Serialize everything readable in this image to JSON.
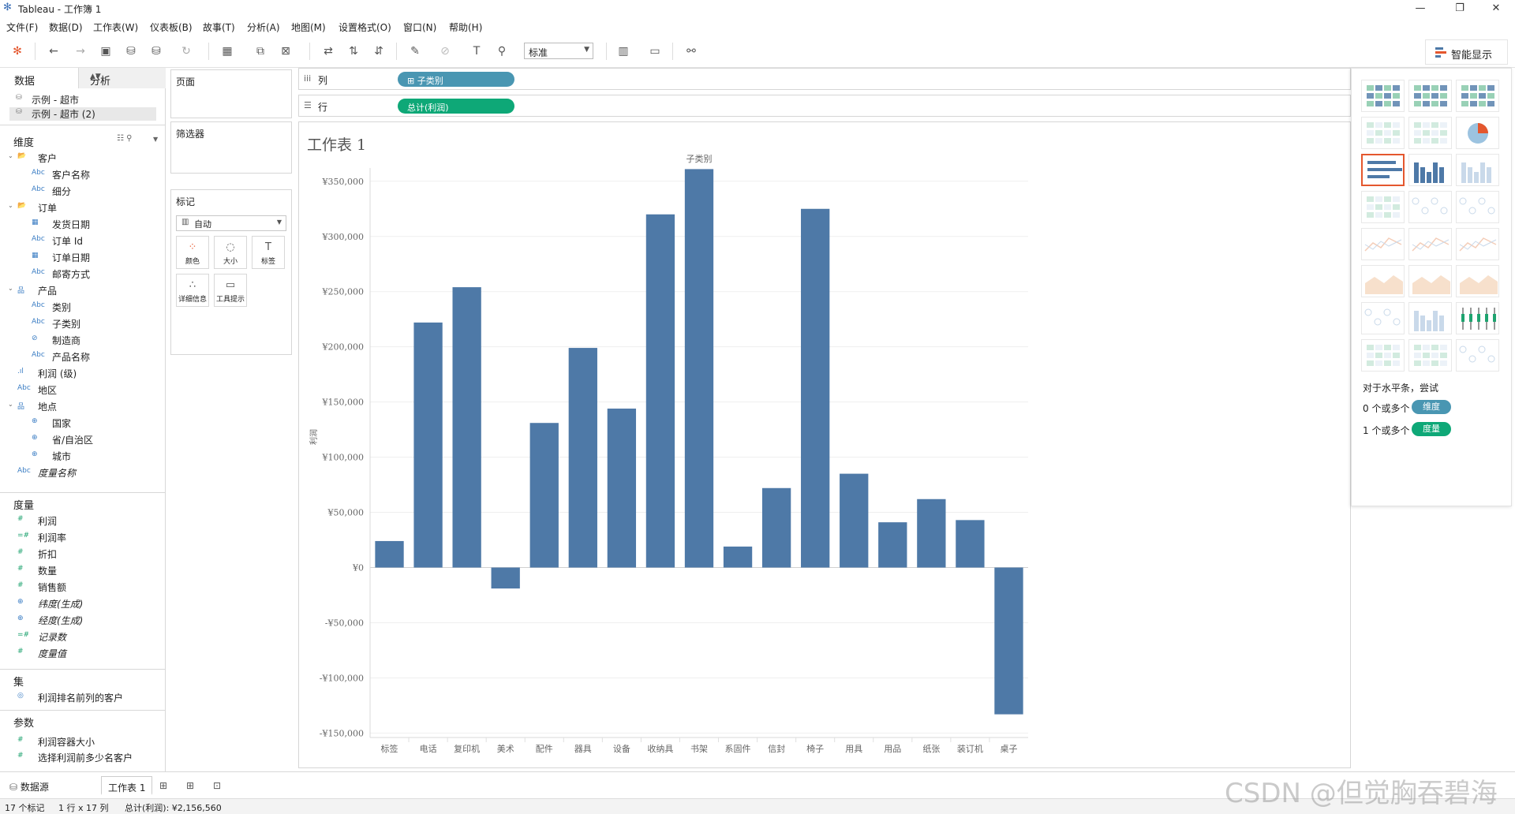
{
  "window": {
    "title": "Tableau - 工作簿 1"
  },
  "menu": [
    "文件(F)",
    "数据(D)",
    "工作表(W)",
    "仪表板(B)",
    "故事(T)",
    "分析(A)",
    "地图(M)",
    "设置格式(O)",
    "窗口(N)",
    "帮助(H)"
  ],
  "toolbar": {
    "fit_select": "标准",
    "show_me_label": "智能显示"
  },
  "data_pane": {
    "tabs": [
      "数据",
      "分析"
    ],
    "datasources": [
      "示例 - 超市",
      "示例 - 超市 (2)"
    ],
    "dimensions_title": "维度",
    "dimensions": [
      {
        "label": "客户",
        "type": "folder",
        "level": 0
      },
      {
        "label": "客户名称",
        "type": "abc",
        "level": 1
      },
      {
        "label": "细分",
        "type": "abc",
        "level": 1
      },
      {
        "label": "订单",
        "type": "folder",
        "level": 0
      },
      {
        "label": "发货日期",
        "type": "date",
        "level": 1
      },
      {
        "label": "订单 Id",
        "type": "abc",
        "level": 1
      },
      {
        "label": "订单日期",
        "type": "date",
        "level": 1
      },
      {
        "label": "邮寄方式",
        "type": "abc",
        "level": 1
      },
      {
        "label": "产品",
        "type": "hier",
        "level": 0
      },
      {
        "label": "类别",
        "type": "abc",
        "level": 1
      },
      {
        "label": "子类别",
        "type": "abc",
        "level": 1
      },
      {
        "label": "制造商",
        "type": "link",
        "level": 1
      },
      {
        "label": "产品名称",
        "type": "abc",
        "level": 1
      },
      {
        "label": "利润 (级)",
        "type": "bin",
        "level": 0
      },
      {
        "label": "地区",
        "type": "abc",
        "level": 0
      },
      {
        "label": "地点",
        "type": "hier",
        "level": 0
      },
      {
        "label": "国家",
        "type": "geo",
        "level": 1
      },
      {
        "label": "省/自治区",
        "type": "geo",
        "level": 1
      },
      {
        "label": "城市",
        "type": "geo",
        "level": 1
      },
      {
        "label": "度量名称",
        "type": "abc",
        "level": 0,
        "italic": true
      }
    ],
    "measures_title": "度量",
    "measures": [
      {
        "label": "利润",
        "type": "num"
      },
      {
        "label": "利润率",
        "type": "calc"
      },
      {
        "label": "折扣",
        "type": "num"
      },
      {
        "label": "数量",
        "type": "num"
      },
      {
        "label": "销售额",
        "type": "num"
      },
      {
        "label": "纬度(生成)",
        "type": "geo",
        "italic": true
      },
      {
        "label": "经度(生成)",
        "type": "geo",
        "italic": true
      },
      {
        "label": "记录数",
        "type": "calc",
        "italic": true
      },
      {
        "label": "度量值",
        "type": "num",
        "italic": true
      }
    ],
    "sets_title": "集",
    "sets": [
      "利润排名前列的客户"
    ],
    "params_title": "参数",
    "params": [
      "利润容器大小",
      "选择利润前多少名客户"
    ]
  },
  "cards": {
    "pages": "页面",
    "filters": "筛选器",
    "marks": "标记",
    "marks_type": "自动",
    "mark_buttons": [
      "颜色",
      "大小",
      "标签",
      "详细信息",
      "工具提示"
    ]
  },
  "shelves": {
    "columns_label": "列",
    "columns_pill": "子类别",
    "rows_label": "行",
    "rows_pill": "总计(利润)",
    "columns_pill_color": "#4996b2",
    "rows_pill_color": "#0ea877"
  },
  "sheet": {
    "title": "工作表 1"
  },
  "chart_data": {
    "type": "bar",
    "header": "子类别",
    "ylabel": "利润",
    "bar_color": "#4e79a7",
    "categories": [
      "标签",
      "电话",
      "复印机",
      "美术",
      "配件",
      "器具",
      "设备",
      "收纳具",
      "书架",
      "系固件",
      "信封",
      "椅子",
      "用具",
      "用品",
      "纸张",
      "装订机",
      "桌子"
    ],
    "values": [
      24000,
      222000,
      254000,
      -19000,
      131000,
      199000,
      144000,
      320000,
      361000,
      19000,
      72000,
      325000,
      85000,
      41000,
      62000,
      43000,
      -133000
    ],
    "ylim": [
      -150000,
      350000
    ],
    "yticks": [
      350000,
      300000,
      250000,
      200000,
      150000,
      100000,
      50000,
      0,
      -50000,
      -100000,
      -150000
    ],
    "ytick_labels": [
      "¥350,000",
      "¥300,000",
      "¥250,000",
      "¥200,000",
      "¥150,000",
      "¥100,000",
      "¥50,000",
      "¥0",
      "-¥50,000",
      "-¥100,000",
      "-¥150,000"
    ],
    "grid": true
  },
  "show_me": {
    "hint": "对于水平条，尝试",
    "req1_prefix": "0 个或多个",
    "req1_pill": "维度",
    "req2_prefix": "1 个或多个",
    "req2_pill": "度量",
    "dim_color": "#4996b2",
    "measure_color": "#0ea877"
  },
  "bottom_tabs": {
    "datasource": "数据源",
    "sheet": "工作表 1"
  },
  "status": {
    "marks": "17 个标记",
    "dims": "1 行 x 17 列",
    "sum": "总计(利润): ¥2,156,560"
  },
  "watermark": "CSDN @但觉胸吞碧海"
}
